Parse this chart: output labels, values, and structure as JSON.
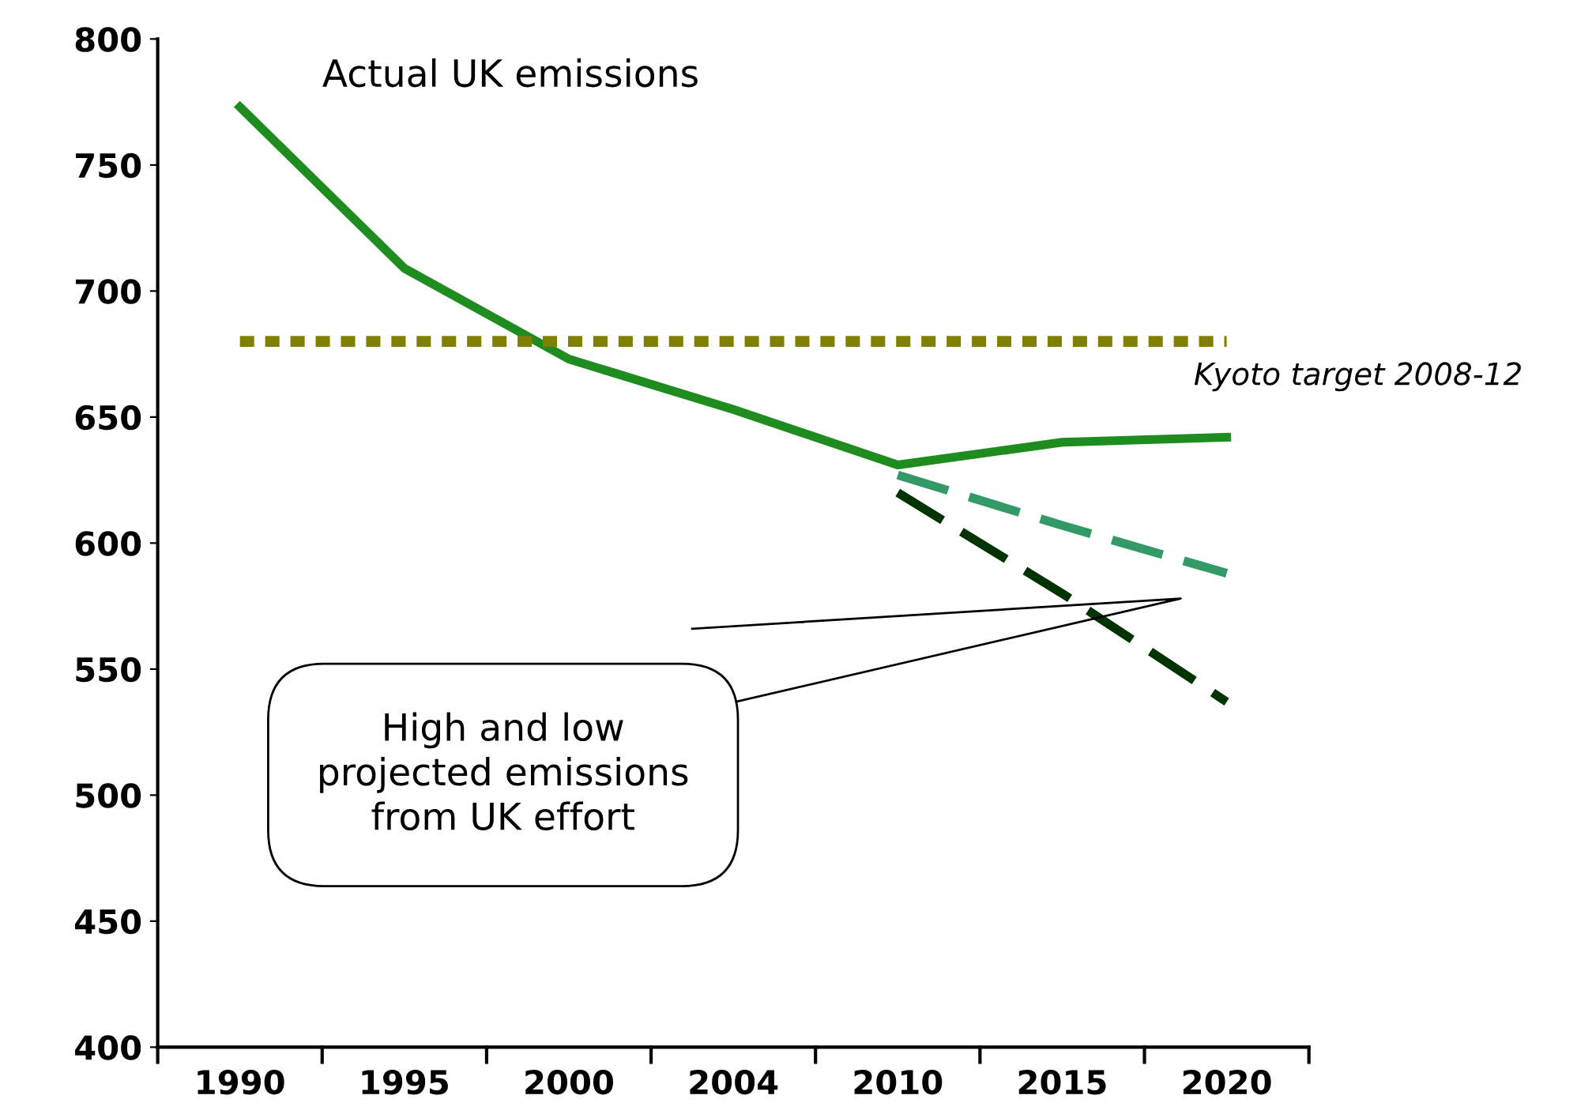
{
  "chart_data": {
    "type": "line",
    "categories": [
      "1990",
      "1995",
      "2000",
      "2004",
      "2010",
      "2015",
      "2020"
    ],
    "series": [
      {
        "name": "Actual UK emissions",
        "color": "#1e8c1e",
        "values": [
          773,
          709,
          673,
          653,
          631,
          640,
          642
        ],
        "line_style": "solid"
      },
      {
        "color": "#339966",
        "values": [
          null,
          null,
          null,
          null,
          627,
          607,
          588
        ],
        "line_style": "dashed"
      },
      {
        "color": "#003300",
        "values": [
          null,
          null,
          null,
          null,
          620,
          580,
          537
        ],
        "line_style": "dashed"
      }
    ],
    "ylim": [
      400,
      800
    ],
    "yticks": [
      400,
      450,
      500,
      550,
      600,
      650,
      700,
      750,
      800
    ],
    "ref_lines": [
      {
        "axis": "y",
        "value": 680,
        "label": "Kyoto target 2008-12",
        "color": "#808000",
        "line_style": "dashed"
      }
    ],
    "annotations": [
      "High and low projected emissions from UK effort"
    ],
    "grid": false,
    "legend": false,
    "marker": "none"
  }
}
